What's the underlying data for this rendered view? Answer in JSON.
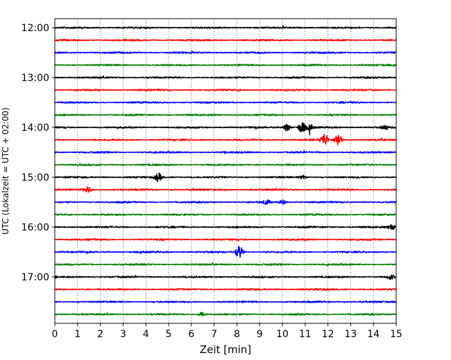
{
  "chart_data": {
    "type": "line",
    "title": "",
    "xlabel": "Zeit  [min]",
    "ylabel": "UTC (Lokalzeit = UTC + 02:00)",
    "xlim": [
      0,
      15
    ],
    "x_ticks": [
      "0",
      "1",
      "2",
      "3",
      "4",
      "5",
      "6",
      "7",
      "8",
      "9",
      "10",
      "11",
      "12",
      "13",
      "14",
      "15"
    ],
    "y_ticks": [
      "12:00",
      "13:00",
      "14:00",
      "15:00",
      "16:00",
      "17:00"
    ],
    "grid": "vertical-dotted",
    "trace_interval_min": 15,
    "series": [
      {
        "row_start": "12:00",
        "color": "#000000"
      },
      {
        "row_start": "12:15",
        "color": "#ff0000"
      },
      {
        "row_start": "12:30",
        "color": "#0000ff"
      },
      {
        "row_start": "12:45",
        "color": "#008000"
      },
      {
        "row_start": "13:00",
        "color": "#000000"
      },
      {
        "row_start": "13:15",
        "color": "#ff0000"
      },
      {
        "row_start": "13:30",
        "color": "#0000ff"
      },
      {
        "row_start": "13:45",
        "color": "#008000"
      },
      {
        "row_start": "14:00",
        "color": "#000000",
        "events": [
          {
            "x": 10.2,
            "amp": 1.7
          },
          {
            "x": 10.85,
            "amp": 2.6
          },
          {
            "x": 11.2,
            "amp": 1.3
          },
          {
            "x": 14.5,
            "amp": 1.0
          }
        ]
      },
      {
        "row_start": "14:15",
        "color": "#ff0000",
        "events": [
          {
            "x": 11.85,
            "amp": 2.8
          },
          {
            "x": 12.45,
            "amp": 3.2
          }
        ]
      },
      {
        "row_start": "14:30",
        "color": "#0000ff"
      },
      {
        "row_start": "14:45",
        "color": "#008000"
      },
      {
        "row_start": "15:00",
        "color": "#000000",
        "events": [
          {
            "x": 4.55,
            "amp": 1.8
          },
          {
            "x": 10.9,
            "amp": 0.8
          }
        ]
      },
      {
        "row_start": "15:15",
        "color": "#ff0000",
        "events": [
          {
            "x": 1.45,
            "amp": 1.4
          }
        ]
      },
      {
        "row_start": "15:30",
        "color": "#0000ff",
        "events": [
          {
            "x": 9.3,
            "amp": 1.0
          },
          {
            "x": 10.0,
            "amp": 0.9
          }
        ]
      },
      {
        "row_start": "15:45",
        "color": "#008000"
      },
      {
        "row_start": "16:00",
        "color": "#000000",
        "events": [
          {
            "x": 14.8,
            "amp": 1.0
          }
        ]
      },
      {
        "row_start": "16:15",
        "color": "#ff0000"
      },
      {
        "row_start": "16:30",
        "color": "#0000ff",
        "events": [
          {
            "x": 8.1,
            "amp": 2.9
          }
        ]
      },
      {
        "row_start": "16:45",
        "color": "#008000"
      },
      {
        "row_start": "17:00",
        "color": "#000000",
        "events": [
          {
            "x": 14.75,
            "amp": 1.0
          }
        ]
      },
      {
        "row_start": "17:15",
        "color": "#ff0000"
      },
      {
        "row_start": "17:30",
        "color": "#0000ff"
      },
      {
        "row_start": "17:45",
        "color": "#008000",
        "events": [
          {
            "x": 6.45,
            "amp": 1.0
          }
        ]
      }
    ]
  }
}
